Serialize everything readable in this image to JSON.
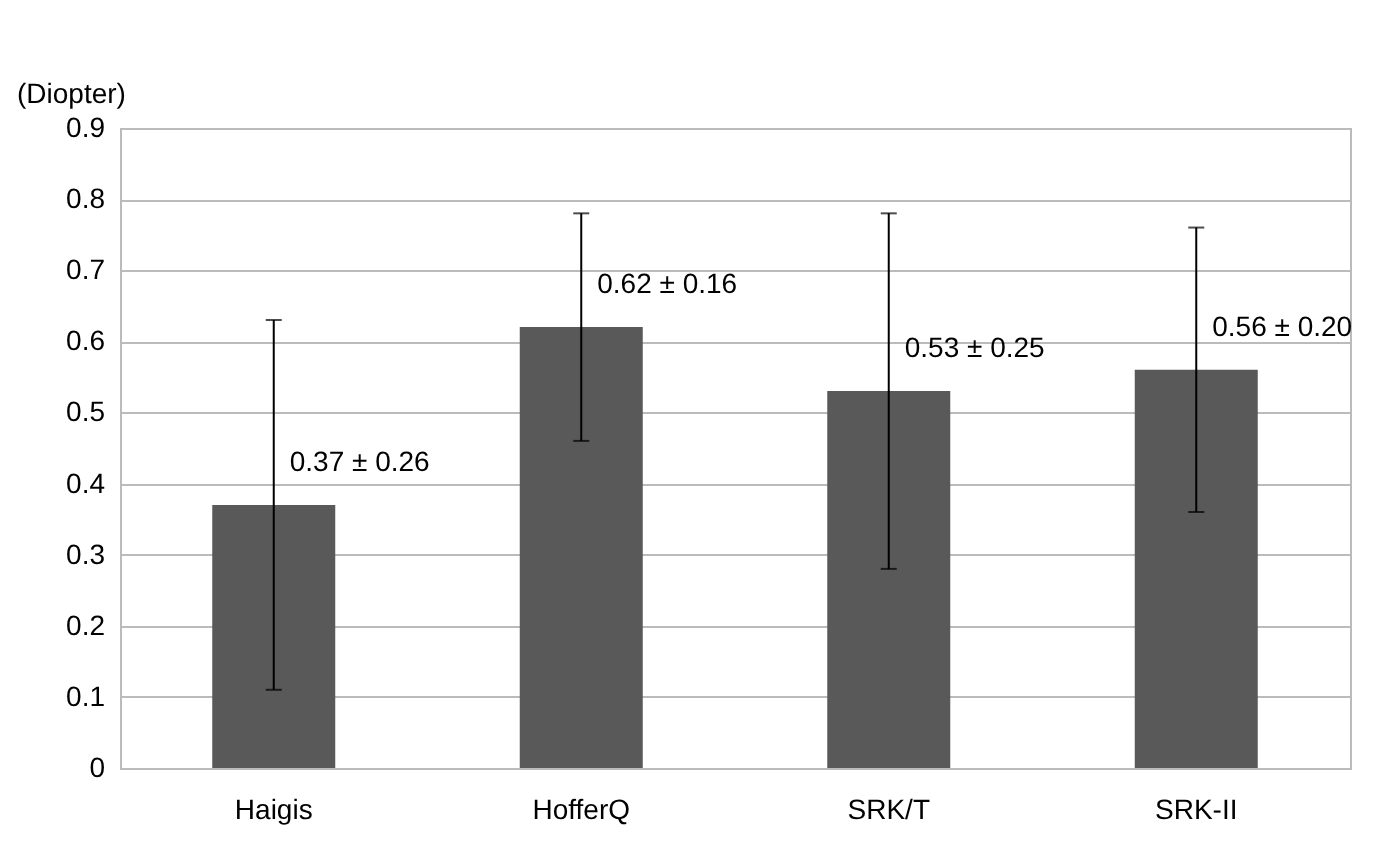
{
  "chart_data": {
    "type": "bar",
    "ylabel": "(Diopter)",
    "categories": [
      "Haigis",
      "HofferQ",
      "SRK/T",
      "SRK-II"
    ],
    "series": [
      {
        "color": "#595959",
        "values": [
          0.37,
          0.62,
          0.53,
          0.56
        ],
        "errors": [
          0.26,
          0.16,
          0.25,
          0.2
        ],
        "value_labels": [
          "0.37 ± 0.26",
          "0.62 ± 0.16",
          "0.53 ± 0.25",
          "0.56 ± 0.20"
        ]
      }
    ],
    "ylim": [
      0,
      0.9
    ],
    "yticks": [
      0,
      0.1,
      0.2,
      0.3,
      0.4,
      0.5,
      0.6,
      0.7,
      0.8,
      0.9
    ],
    "grid": "y"
  }
}
